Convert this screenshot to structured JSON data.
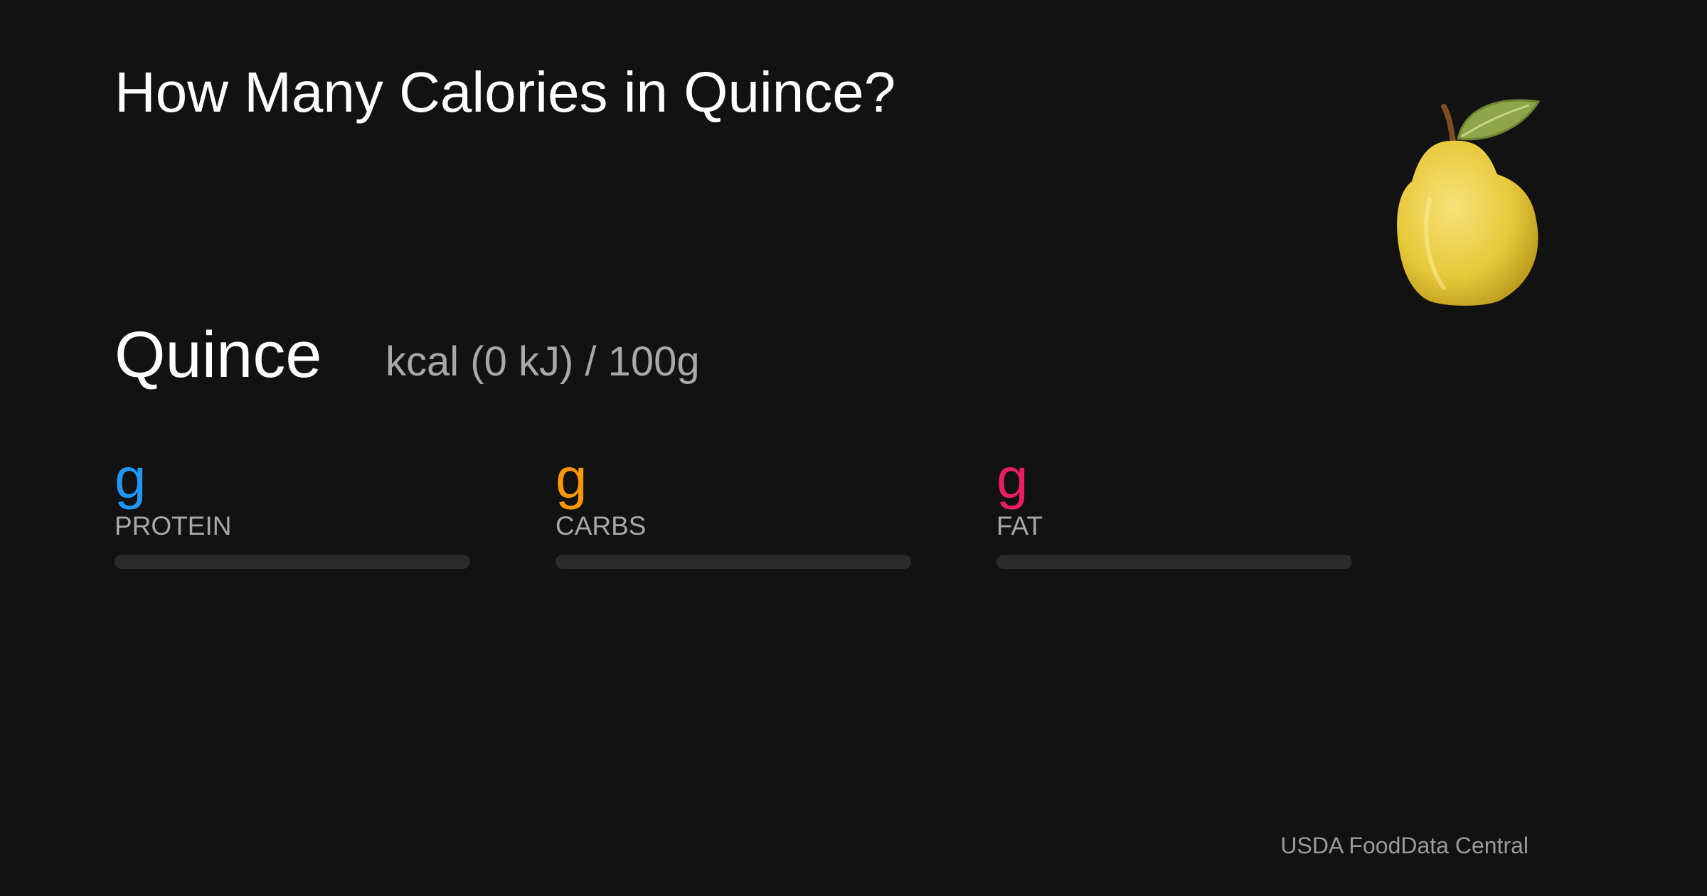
{
  "header": {
    "title": "How Many Calories in Quince?"
  },
  "food": {
    "name": "Quince",
    "energy": "kcal (0 kJ) / 100g"
  },
  "macros": [
    {
      "unit": "g",
      "label": "PROTEIN",
      "color": "#2196f3"
    },
    {
      "unit": "g",
      "label": "CARBS",
      "color": "#ff9800"
    },
    {
      "unit": "g",
      "label": "FAT",
      "color": "#e91e63"
    }
  ],
  "footer": {
    "source": "USDA FoodData Central"
  }
}
